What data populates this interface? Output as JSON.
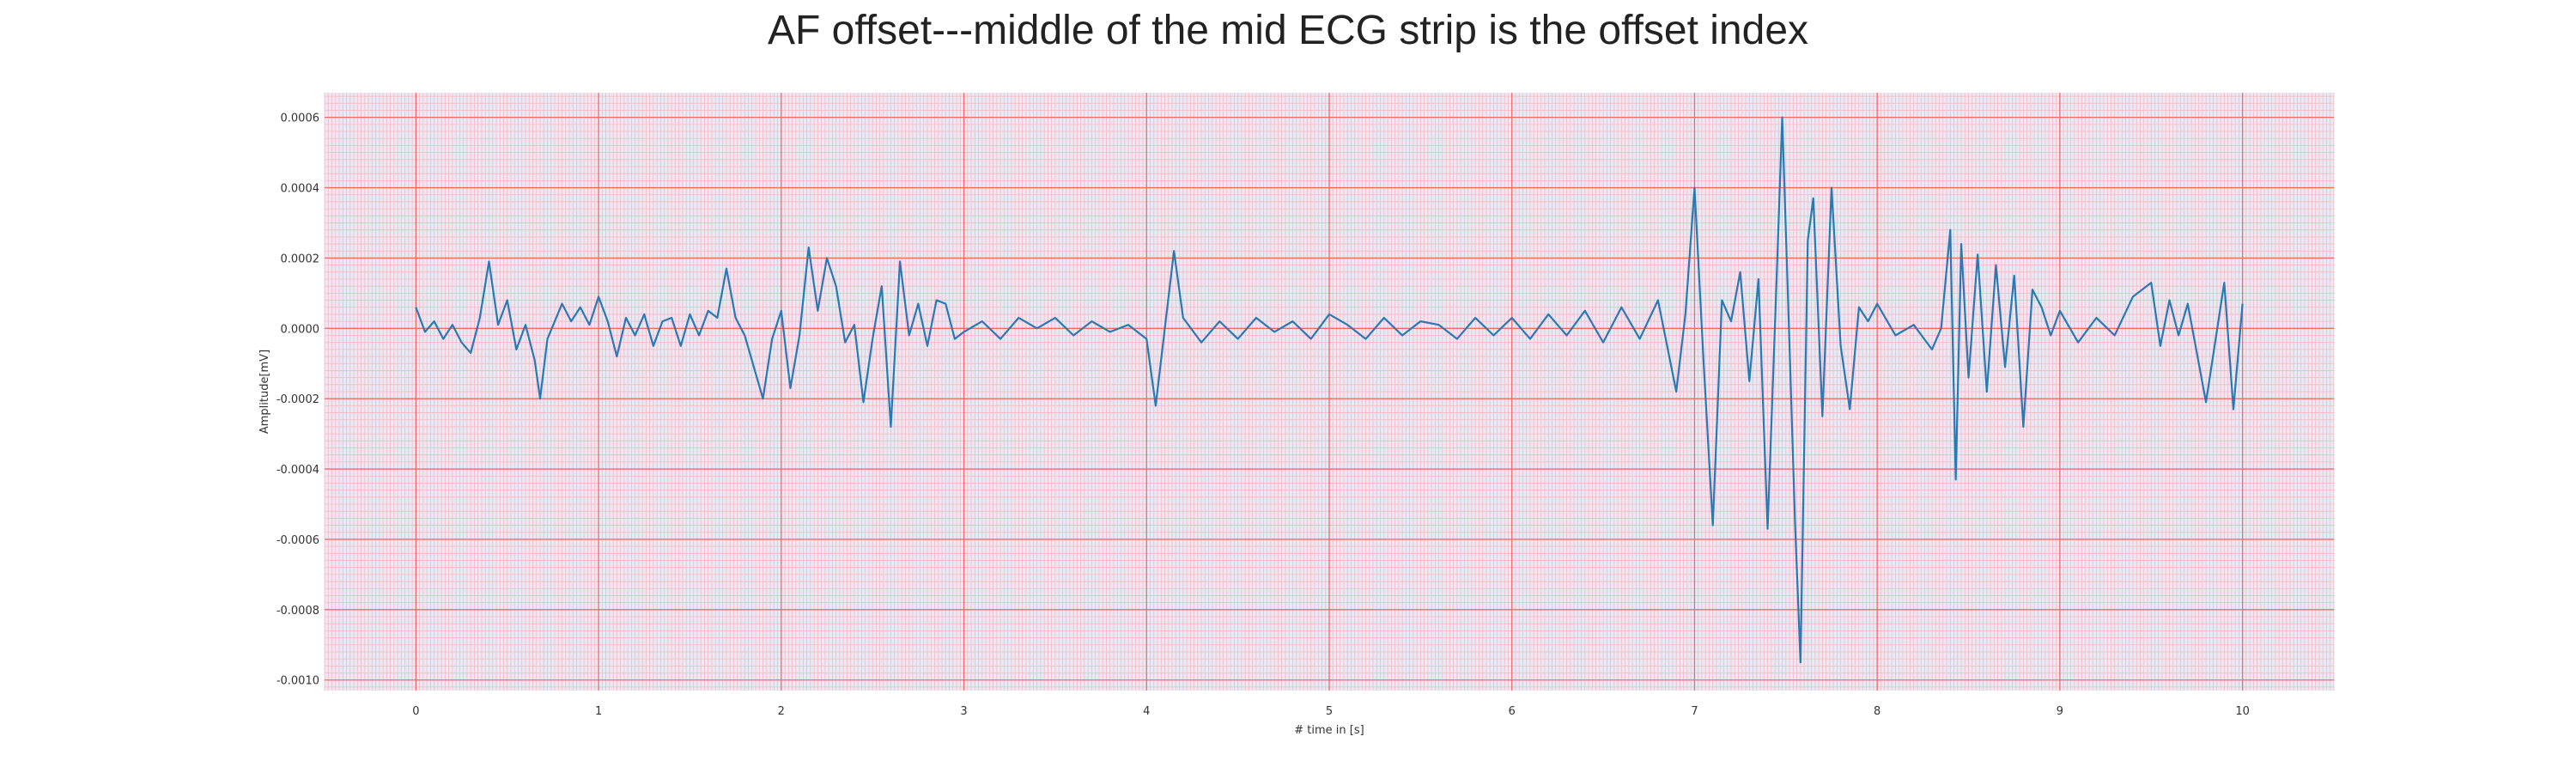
{
  "chart_data": {
    "type": "line",
    "title": "AF offset---middle of the mid ECG strip is the offset index",
    "xlabel": "# time in [s]",
    "ylabel": "Amplitude[mV]",
    "xlim": [
      -0.5,
      10.5
    ],
    "ylim": [
      -0.00103,
      0.00067
    ],
    "x_ticks": [
      0,
      1,
      2,
      3,
      4,
      5,
      6,
      7,
      8,
      9,
      10
    ],
    "x_tick_labels": [
      "0",
      "1",
      "2",
      "3",
      "4",
      "5",
      "6",
      "7",
      "8",
      "9",
      "10"
    ],
    "y_ticks": [
      0.0006,
      0.0004,
      0.0002,
      0.0,
      -0.0002,
      -0.0004,
      -0.0006,
      -0.0008,
      -0.001
    ],
    "y_tick_labels": [
      "0.0006",
      "0.0004",
      "0.0002",
      "0.0000",
      "-0.0002",
      "-0.0004",
      "-0.0006",
      "-0.0008",
      "-0.0010"
    ],
    "grid": true,
    "minor_grid": true,
    "colors": {
      "background": "#eae9f3",
      "major_grid": "#f06a6a",
      "minor_grid": "#f4b9c6",
      "line": "#2a78b4"
    },
    "series": [
      {
        "x": [
          0.0,
          0.05,
          0.1,
          0.15,
          0.2,
          0.25,
          0.3,
          0.35,
          0.4,
          0.45,
          0.5,
          0.55,
          0.6,
          0.65,
          0.68,
          0.72,
          0.8,
          0.85,
          0.9,
          0.95,
          1.0,
          1.05,
          1.1,
          1.15,
          1.2,
          1.25,
          1.3,
          1.35,
          1.4,
          1.45,
          1.5,
          1.55,
          1.6,
          1.65,
          1.7,
          1.75,
          1.8,
          1.85,
          1.9,
          1.95,
          2.0,
          2.05,
          2.1,
          2.15,
          2.2,
          2.25,
          2.3,
          2.35,
          2.4,
          2.45,
          2.5,
          2.55,
          2.6,
          2.65,
          2.7,
          2.75,
          2.8,
          2.85,
          2.9,
          2.95,
          3.0,
          3.1,
          3.2,
          3.3,
          3.4,
          3.5,
          3.6,
          3.7,
          3.8,
          3.9,
          4.0,
          4.05,
          4.1,
          4.15,
          4.2,
          4.3,
          4.4,
          4.5,
          4.6,
          4.7,
          4.8,
          4.9,
          5.0,
          5.1,
          5.2,
          5.3,
          5.4,
          5.5,
          5.6,
          5.7,
          5.8,
          5.9,
          6.0,
          6.1,
          6.2,
          6.3,
          6.4,
          6.5,
          6.6,
          6.7,
          6.8,
          6.9,
          6.95,
          7.0,
          7.05,
          7.1,
          7.15,
          7.2,
          7.25,
          7.3,
          7.35,
          7.4,
          7.45,
          7.48,
          7.52,
          7.55,
          7.58,
          7.62,
          7.65,
          7.7,
          7.75,
          7.8,
          7.85,
          7.9,
          7.95,
          8.0,
          8.1,
          8.2,
          8.3,
          8.35,
          8.4,
          8.43,
          8.46,
          8.5,
          8.55,
          8.6,
          8.65,
          8.7,
          8.75,
          8.8,
          8.85,
          8.9,
          8.95,
          9.0,
          9.1,
          9.2,
          9.3,
          9.4,
          9.5,
          9.55,
          9.6,
          9.65,
          9.7,
          9.8,
          9.9,
          9.95,
          10.0
        ],
        "y": [
          6e-05,
          -1e-05,
          2e-05,
          -3e-05,
          1e-05,
          -4e-05,
          -7e-05,
          3e-05,
          0.00019,
          1e-05,
          8e-05,
          -6e-05,
          1e-05,
          -9e-05,
          -0.0002,
          -3e-05,
          7e-05,
          2e-05,
          6e-05,
          1e-05,
          9e-05,
          2e-05,
          -8e-05,
          3e-05,
          -2e-05,
          4e-05,
          -5e-05,
          2e-05,
          3e-05,
          -5e-05,
          4e-05,
          -2e-05,
          5e-05,
          3e-05,
          0.00017,
          3e-05,
          -2e-05,
          -0.00011,
          -0.0002,
          -3e-05,
          5e-05,
          -0.00017,
          -2e-05,
          0.00023,
          5e-05,
          0.0002,
          0.00012,
          -4e-05,
          1e-05,
          -0.00021,
          -3e-05,
          0.00012,
          -0.00028,
          0.00019,
          -2e-05,
          7e-05,
          -5e-05,
          8e-05,
          7e-05,
          -3e-05,
          -1e-05,
          2e-05,
          -3e-05,
          3e-05,
          0.0,
          3e-05,
          -2e-05,
          2e-05,
          -1e-05,
          1e-05,
          -3e-05,
          -0.00022,
          0.0,
          0.00022,
          3e-05,
          -4e-05,
          2e-05,
          -3e-05,
          3e-05,
          -1e-05,
          2e-05,
          -3e-05,
          4e-05,
          1e-05,
          -3e-05,
          3e-05,
          -2e-05,
          2e-05,
          1e-05,
          -3e-05,
          3e-05,
          -2e-05,
          3e-05,
          -3e-05,
          4e-05,
          -2e-05,
          5e-05,
          -4e-05,
          6e-05,
          -3e-05,
          8e-05,
          -0.00018,
          4e-05,
          0.0004,
          -0.0001,
          -0.00056,
          8e-05,
          2e-05,
          0.00016,
          -0.00015,
          0.00014,
          -0.00057,
          0.00015,
          0.0006,
          -5e-05,
          -0.00055,
          -0.00095,
          0.00025,
          0.00037,
          -0.00025,
          0.0004,
          -5e-05,
          -0.00023,
          6e-05,
          2e-05,
          7e-05,
          -2e-05,
          1e-05,
          -6e-05,
          0.0,
          0.00028,
          -0.00043,
          0.00024,
          -0.00014,
          0.00021,
          -0.00018,
          0.00018,
          -0.00011,
          0.00015,
          -0.00028,
          0.00011,
          6e-05,
          -2e-05,
          5e-05,
          -4e-05,
          3e-05,
          -2e-05,
          9e-05,
          0.00013,
          -5e-05,
          8e-05,
          -2e-05,
          7e-05,
          -0.00021,
          0.00013,
          -0.00023,
          7e-05
        ]
      }
    ]
  }
}
